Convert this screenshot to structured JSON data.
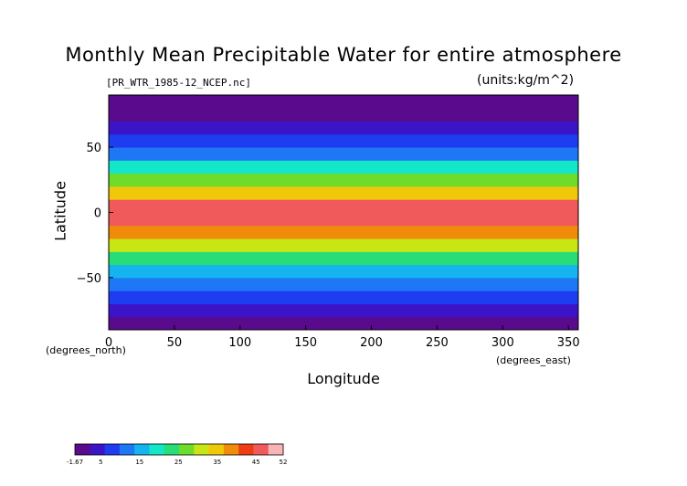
{
  "chart_data": {
    "type": "heatmap",
    "title": "Monthly Mean Precipitable Water for entire atmosphere",
    "subtitle": "[PR_WTR_1985-12_NCEP.nc]",
    "units": "(units:kg/m^2)",
    "xlabel": "Longitude",
    "ylabel": "Latitude",
    "x_unit_label": "(degrees_east)",
    "y_unit_label": "(degrees_north)",
    "xlim": [
      0,
      357.5
    ],
    "ylim": [
      -90,
      90
    ],
    "x_ticks": [
      0,
      50,
      100,
      150,
      200,
      250,
      300,
      350
    ],
    "y_ticks": [
      -50,
      0,
      50
    ],
    "colorbar": {
      "min": -1.67,
      "max": 52,
      "tick_values": [
        -1.67,
        5,
        15,
        25,
        35,
        45,
        52
      ],
      "tick_labels": [
        "-1.67",
        "5",
        "15",
        "25",
        "35",
        "45",
        "52"
      ],
      "colors": [
        "#5a0a8c",
        "#3c14c8",
        "#1e3cf0",
        "#1e78f5",
        "#14b4f0",
        "#14e6c8",
        "#28dc78",
        "#6edc28",
        "#c8e614",
        "#f0c80a",
        "#f08c0a",
        "#f03c14",
        "#f05a5a",
        "#f8b4b4"
      ]
    },
    "values_by_latitude": [
      {
        "lat": -85,
        "value": 2
      },
      {
        "lat": -75,
        "value": 4
      },
      {
        "lat": -65,
        "value": 6
      },
      {
        "lat": -55,
        "value": 11
      },
      {
        "lat": -45,
        "value": 17
      },
      {
        "lat": -35,
        "value": 23
      },
      {
        "lat": -25,
        "value": 30
      },
      {
        "lat": -15,
        "value": 38
      },
      {
        "lat": -5,
        "value": 45
      },
      {
        "lat": 5,
        "value": 46
      },
      {
        "lat": 15,
        "value": 35
      },
      {
        "lat": 25,
        "value": 26
      },
      {
        "lat": 35,
        "value": 18
      },
      {
        "lat": 45,
        "value": 12
      },
      {
        "lat": 55,
        "value": 7
      },
      {
        "lat": 65,
        "value": 4
      },
      {
        "lat": 75,
        "value": 2
      },
      {
        "lat": 85,
        "value": 1
      }
    ],
    "grid": false,
    "colorbar_placement": "bottom-left"
  }
}
